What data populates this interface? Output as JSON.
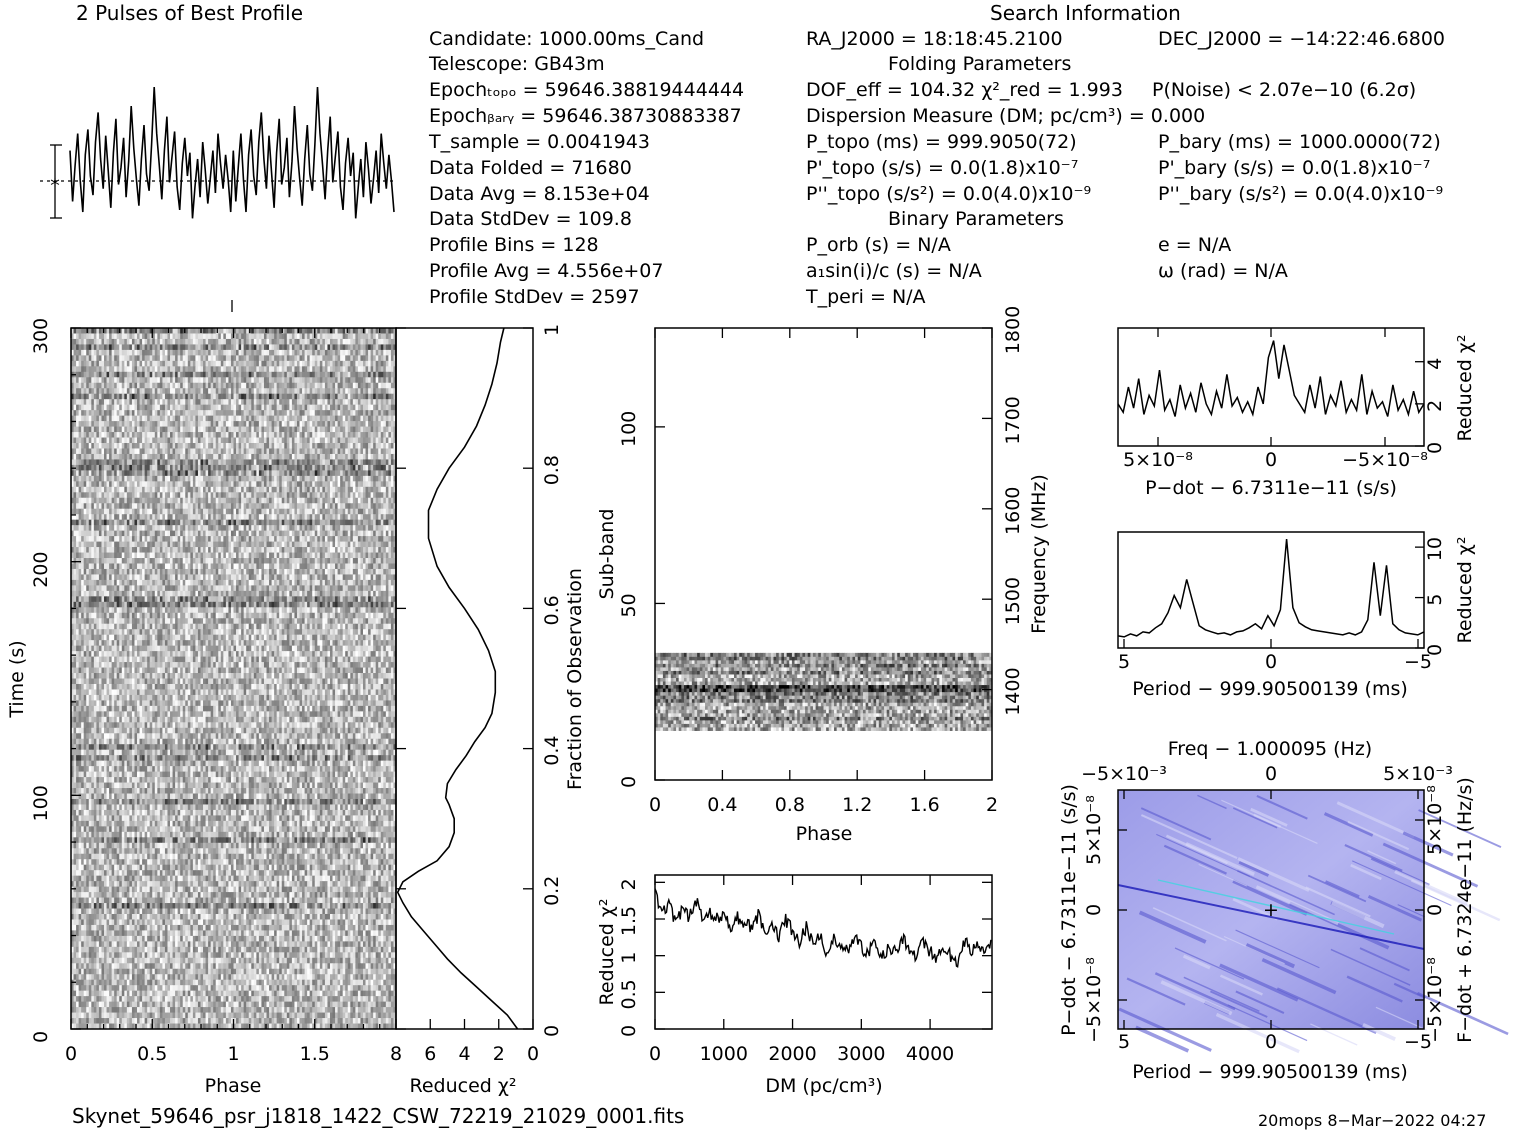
{
  "titles": {
    "profile": "2 Pulses of Best Profile",
    "search": "Search Information",
    "folding": "Folding Parameters",
    "binary": "Binary Parameters",
    "filename": "Skynet_59646_psr_j1818_1422_CSW_72219_21029_0001.fits",
    "footer": "20mops   8−Mar−2022 04:27"
  },
  "info": {
    "candidate": "Candidate:  1000.00ms_Cand",
    "telescope": "Telescope:  GB43m",
    "epoch_topo": "Epochₜₒₚₒ = 59646.38819444444",
    "epoch_bary": "Epochᵦₐᵣᵧ = 59646.38730883387",
    "t_sample": "T_sample          =  0.0041943",
    "data_folded": "Data Folded    =  71680",
    "data_avg": "Data Avg         =  8.153e+04",
    "data_stddev": "Data StdDev    =  109.8",
    "profile_bins": "Profile Bins     =  128",
    "profile_avg": "Profile Avg      =  4.556e+07",
    "profile_stddev": "Profile StdDev =  2597"
  },
  "search_info": {
    "ra": "RA_J2000 = 18:18:45.2100",
    "dec": "DEC_J2000 = −14:22:46.6800",
    "dof": "DOF_eff = 104.32  χ²_red = 1.993",
    "pnoise": "P(Noise) < 2.07e−10   (6.2σ)",
    "dm": "Dispersion Measure (DM; pc/cm³) = 0.000",
    "p_topo": "P_topo (ms) =  999.9050(72)",
    "p_bary": "P_bary (ms) =  1000.0000(72)",
    "pd_topo": "P'_topo (s/s) = 0.0(1.8)x10⁻⁷",
    "pd_bary": "P'_bary (s/s) = 0.0(1.8)x10⁻⁷",
    "pdd_topo": "P''_topo (s/s²) = 0.0(4.0)x10⁻⁹",
    "pdd_bary": "P''_bary (s/s²) = 0.0(4.0)x10⁻⁹",
    "porb": "P_orb (s) = N/A",
    "e": "e = N/A",
    "a1": "a₁sin(i)/c (s) = N/A",
    "omega": "ω (rad) = N/A",
    "tperi": "T_peri = N/A"
  },
  "chart_data": [
    {
      "type": "line",
      "name": "profile",
      "title": "2 Pulses of Best Profile",
      "xlim": [
        0,
        2
      ],
      "values": [
        0.62,
        0.38,
        0.55,
        0.7,
        0.48,
        0.33,
        0.6,
        0.72,
        0.5,
        0.41,
        0.66,
        0.8,
        0.58,
        0.44,
        0.69,
        0.52,
        0.35,
        0.61,
        0.77,
        0.46,
        0.54,
        0.68,
        0.4,
        0.57,
        0.83,
        0.63,
        0.49,
        0.36,
        0.58,
        0.74,
        0.51,
        0.43,
        0.65,
        0.92,
        0.7,
        0.55,
        0.39,
        0.62,
        0.78,
        0.47,
        0.59,
        0.71,
        0.45,
        0.34,
        0.56,
        0.68,
        0.5,
        0.61,
        0.3,
        0.45,
        0.58,
        0.4,
        0.66,
        0.53,
        0.37,
        0.49,
        0.62,
        0.42,
        0.7,
        0.56,
        0.44,
        0.6,
        0.48,
        0.33,
        0.62,
        0.38,
        0.55,
        0.7,
        0.48,
        0.33,
        0.6,
        0.72,
        0.5,
        0.41,
        0.66,
        0.8,
        0.58,
        0.44,
        0.69,
        0.52,
        0.35,
        0.61,
        0.77,
        0.46,
        0.54,
        0.68,
        0.4,
        0.57,
        0.83,
        0.63,
        0.49,
        0.36,
        0.58,
        0.74,
        0.51,
        0.43,
        0.65,
        0.92,
        0.7,
        0.55,
        0.39,
        0.62,
        0.78,
        0.47,
        0.59,
        0.71,
        0.45,
        0.34,
        0.56,
        0.68,
        0.5,
        0.61,
        0.3,
        0.45,
        0.58,
        0.4,
        0.66,
        0.53,
        0.37,
        0.49,
        0.62,
        0.42,
        0.7,
        0.56,
        0.44,
        0.6,
        0.48,
        0.33
      ]
    },
    {
      "type": "heatmap",
      "name": "time-phase",
      "xlabel": "Phase",
      "ylabel": "Time (s)",
      "xlim": [
        0,
        2
      ],
      "ylim": [
        0,
        300
      ],
      "xticks": [
        "0",
        "0.5",
        "1",
        "1.5"
      ],
      "yticks": [
        "0",
        "100",
        "200",
        "300"
      ]
    },
    {
      "type": "line",
      "name": "reduced-chi2-vs-fraction",
      "xlabel": "Reduced χ²",
      "ylabel": "Fraction of Observation",
      "xlim": [
        8,
        0
      ],
      "ylim": [
        0,
        1
      ],
      "xticks": [
        "8",
        "6",
        "4",
        "2",
        "0"
      ],
      "yticks": [
        "0",
        "0.2",
        "0.4",
        "0.6",
        "0.8",
        "1"
      ],
      "x": [
        0.9,
        1.5,
        2.4,
        3.3,
        4.2,
        5.0,
        5.7,
        6.4,
        7.1,
        7.6,
        7.9,
        7.6,
        6.7,
        5.6,
        4.9,
        4.6,
        4.6,
        4.9,
        5.1,
        5.0,
        4.5,
        3.9,
        3.4,
        2.8,
        2.4,
        2.2,
        2.2,
        2.6,
        3.2,
        4.0,
        4.9,
        5.6,
        6.1,
        6.1,
        5.6,
        4.9,
        4.0,
        3.3,
        2.8,
        2.4,
        2.1,
        1.9,
        1.7
      ],
      "y": [
        0.0,
        0.02,
        0.04,
        0.06,
        0.08,
        0.1,
        0.12,
        0.14,
        0.16,
        0.18,
        0.195,
        0.21,
        0.225,
        0.24,
        0.26,
        0.28,
        0.3,
        0.32,
        0.33,
        0.35,
        0.37,
        0.39,
        0.41,
        0.43,
        0.45,
        0.48,
        0.51,
        0.54,
        0.57,
        0.6,
        0.63,
        0.66,
        0.7,
        0.74,
        0.77,
        0.8,
        0.83,
        0.86,
        0.89,
        0.92,
        0.95,
        0.98,
        1.0
      ]
    },
    {
      "type": "heatmap",
      "name": "subband-phase",
      "xlabel": "Phase",
      "ylabel": "Sub-band",
      "y2label": "Frequency (MHz)",
      "xlim": [
        0,
        2
      ],
      "ylim": [
        0,
        128
      ],
      "y2lim": [
        1300,
        1800
      ],
      "xticks": [
        "0",
        "0.4",
        "0.8",
        "1.2",
        "1.6",
        "2"
      ],
      "yticks": [
        "0",
        "50",
        "100"
      ],
      "y2ticks": [
        "1400",
        "1500",
        "1600",
        "1700",
        "1800"
      ],
      "active_subbands": [
        14,
        35
      ]
    },
    {
      "type": "line",
      "name": "reduced-chi2-vs-dm",
      "xlabel": "DM (pc/cm³)",
      "ylabel": "Reduced χ²",
      "xlim": [
        0,
        4900
      ],
      "ylim": [
        0,
        2.1
      ],
      "xticks": [
        "0",
        "1000",
        "2000",
        "3000",
        "4000"
      ],
      "yticks": [
        "0",
        "0.5",
        "1",
        "1.5",
        "2"
      ],
      "x": [
        0,
        100,
        200,
        300,
        400,
        500,
        600,
        700,
        800,
        900,
        1000,
        1100,
        1200,
        1300,
        1400,
        1500,
        1600,
        1700,
        1800,
        1900,
        2000,
        2100,
        2200,
        2300,
        2400,
        2500,
        2600,
        2700,
        2800,
        2900,
        3000,
        3100,
        3200,
        3300,
        3400,
        3500,
        3600,
        3700,
        3800,
        3900,
        4000,
        4100,
        4200,
        4300,
        4400,
        4500,
        4600,
        4700,
        4800,
        4900
      ],
      "y": [
        1.85,
        1.55,
        1.7,
        1.45,
        1.62,
        1.52,
        1.75,
        1.48,
        1.6,
        1.5,
        1.58,
        1.4,
        1.52,
        1.45,
        1.38,
        1.55,
        1.3,
        1.42,
        1.25,
        1.48,
        1.35,
        1.2,
        1.38,
        1.15,
        1.3,
        1.0,
        1.22,
        1.1,
        1.05,
        1.28,
        1.12,
        1.02,
        1.2,
        0.98,
        1.1,
        1.05,
        1.25,
        1.08,
        1.0,
        1.18,
        1.05,
        0.98,
        1.12,
        1.0,
        0.92,
        1.2,
        1.05,
        1.15,
        1.02,
        1.25
      ]
    },
    {
      "type": "line",
      "name": "pdot-search",
      "xlabel": "P−dot − 6.7311e−11 (s/s)",
      "ylabel": "Reduced χ²",
      "xticks": [
        "5×10⁻⁸",
        "0",
        "−5×10⁻⁸"
      ],
      "yticks": [
        "0",
        "2",
        "4"
      ],
      "ylim": [
        0,
        5.6
      ],
      "values": [
        2.0,
        1.6,
        2.8,
        1.8,
        3.2,
        1.5,
        2.4,
        1.9,
        3.6,
        1.7,
        2.2,
        1.4,
        2.9,
        1.8,
        2.5,
        1.6,
        3.0,
        2.0,
        1.5,
        2.6,
        1.8,
        3.4,
        1.9,
        2.3,
        1.6,
        2.1,
        1.5,
        2.8,
        2.0,
        4.2,
        5.0,
        3.2,
        4.8,
        3.6,
        2.4,
        2.0,
        1.6,
        2.9,
        1.8,
        3.3,
        1.5,
        2.4,
        1.9,
        3.1,
        1.6,
        2.2,
        1.7,
        3.4,
        1.5,
        2.6,
        1.8,
        2.1,
        1.4,
        2.9,
        1.7,
        2.2,
        1.5,
        2.6,
        1.6,
        2.0
      ]
    },
    {
      "type": "line",
      "name": "period-search",
      "xlabel": "Period − 999.90500139 (ms)",
      "ylabel": "Reduced χ²",
      "xticks": [
        "5",
        "0",
        "−5"
      ],
      "yticks": [
        "0",
        "5",
        "10"
      ],
      "ylim": [
        0,
        11.5
      ],
      "values": [
        1.2,
        1.1,
        1.4,
        1.2,
        1.6,
        1.5,
        2.0,
        2.4,
        3.5,
        5.2,
        4.0,
        6.8,
        4.5,
        2.2,
        1.8,
        1.6,
        1.4,
        1.5,
        1.3,
        1.6,
        1.7,
        2.0,
        2.4,
        1.9,
        3.2,
        2.2,
        3.8,
        10.8,
        4.0,
        2.5,
        2.1,
        1.8,
        1.7,
        1.6,
        1.5,
        1.4,
        1.3,
        1.5,
        1.3,
        1.6,
        2.8,
        8.5,
        3.2,
        8.2,
        2.4,
        1.8,
        1.5,
        1.4,
        1.3,
        1.6
      ]
    },
    {
      "type": "heatmap",
      "name": "period-pdot-plane",
      "title": "Freq − 1.000095 (Hz)",
      "xlabel": "Period − 999.90500139 (ms)",
      "ylabel": "P−dot − 6.7311e−11 (s/s)",
      "y2label": "F−dot + 6.7324e−11 (Hz/s)",
      "xticks": [
        "5",
        "0",
        "−5"
      ],
      "x2ticks": [
        "−5×10⁻³",
        "0",
        "5×10⁻³"
      ],
      "yticks": [
        "5×10⁻⁸",
        "0",
        "−5×10⁻⁸"
      ],
      "y2ticks": [
        "−5×10⁻⁸",
        "0",
        "5×10⁻⁸"
      ]
    }
  ]
}
